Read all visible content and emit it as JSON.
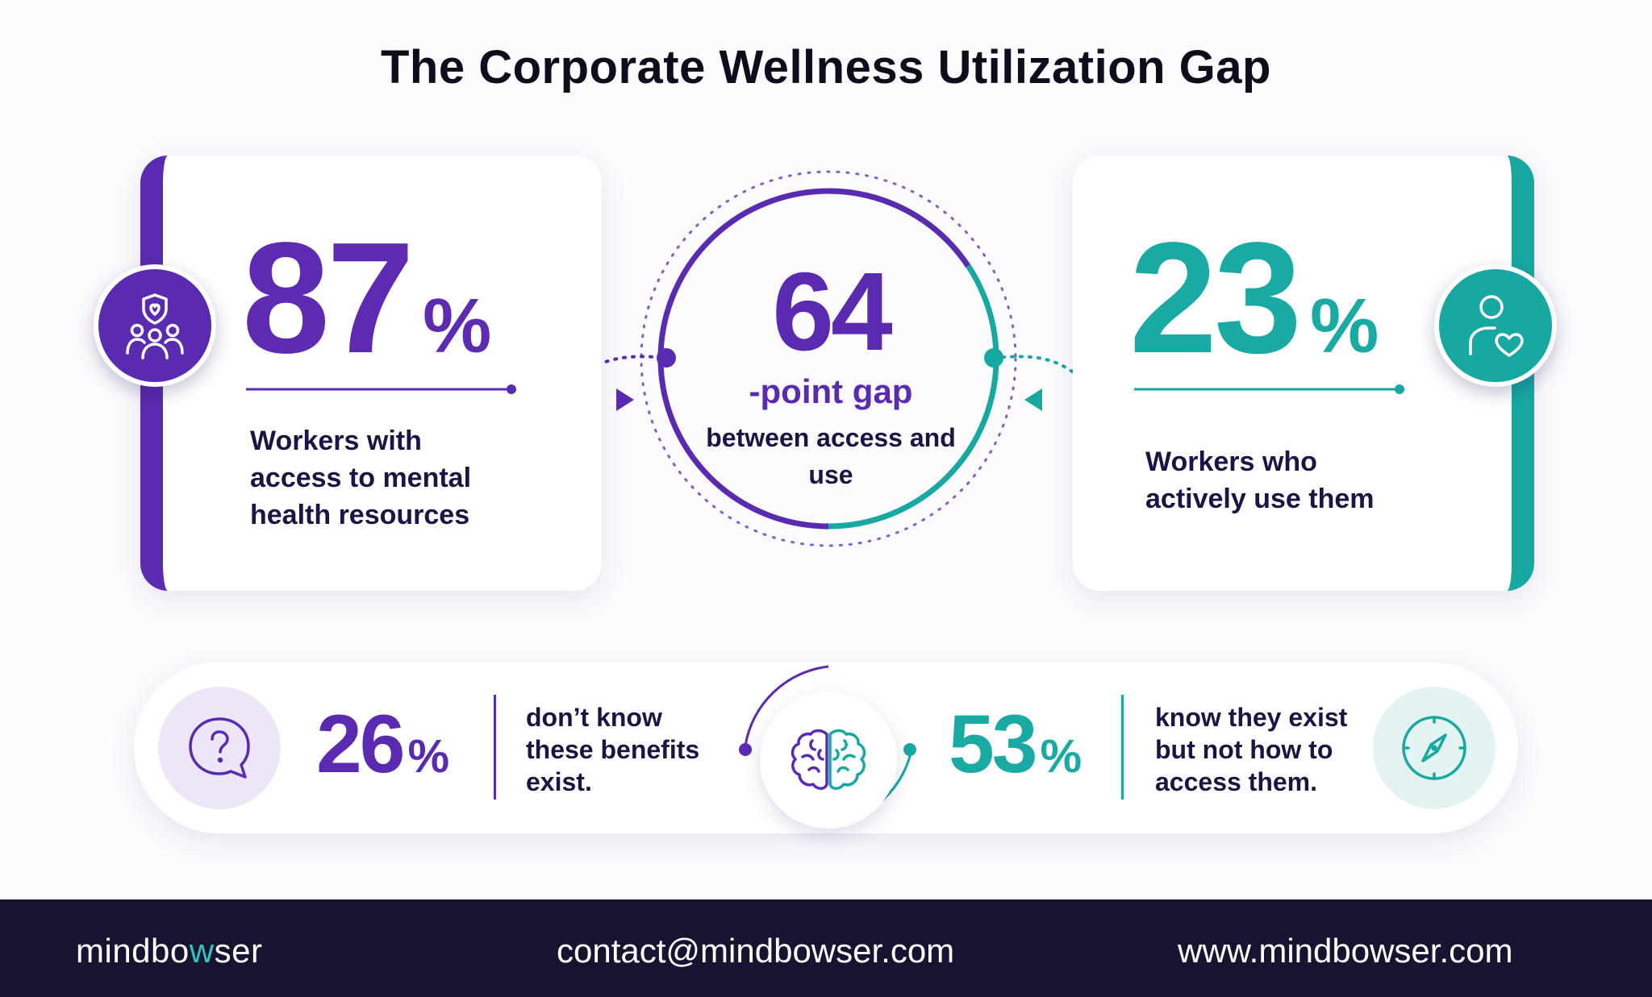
{
  "title": "The Corporate Wellness Utilization Gap",
  "colors": {
    "purple": "#5a2bb0",
    "teal": "#17a8a2",
    "footer_bg": "#1a1231",
    "text": "#1b1545"
  },
  "access_card": {
    "value": "87",
    "unit": "%",
    "text": "Workers with access to mental health resources",
    "icon": "team-shield-icon"
  },
  "usage_card": {
    "value": "23",
    "unit": "%",
    "text": "Workers who actively use them",
    "icon": "person-heart-icon"
  },
  "gap": {
    "value": "64",
    "label": "-point gap",
    "text": "between access and use"
  },
  "unaware": {
    "value": "26",
    "unit": "%",
    "text": "don’t know these benefits exist.",
    "icon": "question-bubble-icon"
  },
  "unsure_how": {
    "value": "53",
    "unit": "%",
    "text": "know they exist but not how to access them.",
    "icon": "compass-icon"
  },
  "center_icon": "brain-icon",
  "footer": {
    "brand_start": "mindbo",
    "brand_accent": "w",
    "brand_end": "ser",
    "email": "contact@mindbowser.com",
    "website": "www.mindbowser.com"
  }
}
